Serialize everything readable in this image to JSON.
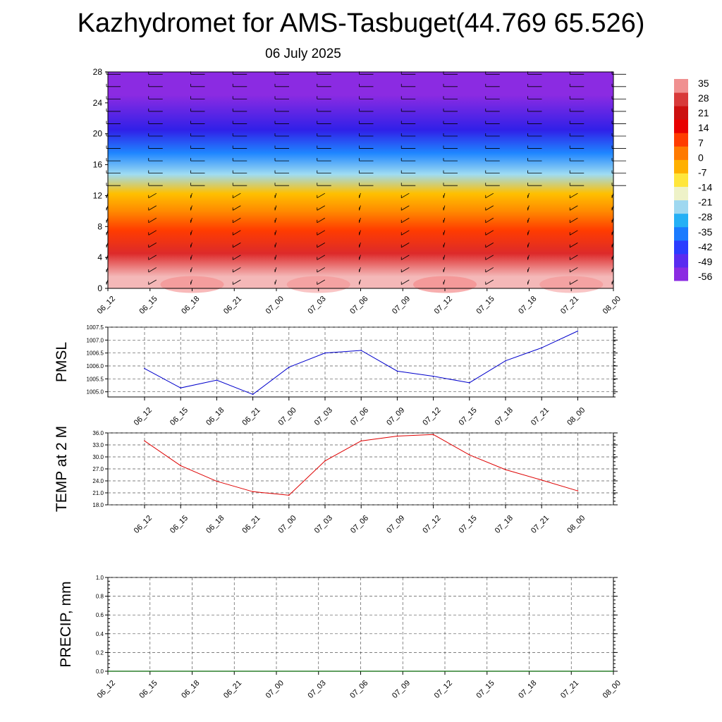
{
  "header": {
    "title": "Kazhydromet for AMS-Tasbuget(44.769 65.526)",
    "subtitle": "06 July 2025"
  },
  "colors": {
    "pmsl_line": "#0000cc",
    "temp_line": "#dd0000",
    "precip_line": "#006400",
    "grid": "#555555",
    "colorbar": [
      "#8b2be2",
      "#5a2bf0",
      "#2a3cff",
      "#1a7bff",
      "#25b0f5",
      "#9fd8f0",
      "#eef2c8",
      "#ffe63c",
      "#ffb000",
      "#ff7a00",
      "#ff3c00",
      "#e80000",
      "#cc1010",
      "#d83a3a",
      "#f09090"
    ]
  },
  "chart_data": [
    {
      "type": "heatmap",
      "title": "",
      "xlabel": "",
      "ylabel": "",
      "x_ticks": [
        "06_12",
        "06_15",
        "06_18",
        "06_21",
        "07_00",
        "07_03",
        "07_06",
        "07_09",
        "07_12",
        "07_15",
        "07_18",
        "07_21",
        "08_00"
      ],
      "y_ticks": [
        "0",
        "4",
        "8",
        "12",
        "16",
        "20",
        "24",
        "28"
      ],
      "ylim": [
        0,
        28
      ],
      "colorbar_labels": [
        "35",
        "28",
        "21",
        "14",
        "7",
        "0",
        "-7",
        "-14",
        "-21",
        "-28",
        "-35",
        "-42",
        "-49",
        "-56"
      ],
      "temperature_bands": [
        {
          "height_from": 0,
          "height_to": 3,
          "value": 33
        },
        {
          "height_from": 3,
          "height_to": 6,
          "value": 26
        },
        {
          "height_from": 6,
          "height_to": 9,
          "value": 17
        },
        {
          "height_from": 9,
          "height_to": 11,
          "value": 8
        },
        {
          "height_from": 11,
          "height_to": 13.5,
          "value": 0
        },
        {
          "height_from": 13.5,
          "height_to": 16,
          "value": -21
        },
        {
          "height_from": 16,
          "height_to": 19,
          "value": -35
        },
        {
          "height_from": 19,
          "height_to": 22,
          "value": -49
        },
        {
          "height_from": 22,
          "height_to": 28,
          "value": -56
        }
      ]
    },
    {
      "type": "line",
      "ylabel": "PMSL",
      "categories": [
        "06_12",
        "06_15",
        "06_18",
        "06_21",
        "07_00",
        "07_03",
        "07_06",
        "07_09",
        "07_12",
        "07_15",
        "07_18",
        "07_21",
        "08_00"
      ],
      "values": [
        1005.9,
        1005.15,
        1005.45,
        1004.9,
        1005.95,
        1006.5,
        1006.6,
        1005.8,
        1005.6,
        1005.35,
        1006.2,
        1006.7,
        1007.35
      ],
      "ylim": [
        1004.8,
        1007.5
      ],
      "y_ticks": [
        "1005.0",
        "1005.5",
        "1006.0",
        "1006.5",
        "1007.0",
        "1007.5"
      ]
    },
    {
      "type": "line",
      "ylabel": "TEMP at 2 M",
      "categories": [
        "06_12",
        "06_15",
        "06_18",
        "06_21",
        "07_00",
        "07_03",
        "07_06",
        "07_09",
        "07_12",
        "07_15",
        "07_18",
        "07_21",
        "08_00"
      ],
      "values": [
        34.0,
        27.8,
        23.9,
        21.3,
        20.4,
        29.0,
        34.0,
        35.2,
        35.6,
        30.5,
        26.8,
        24.2,
        21.5
      ],
      "ylim": [
        18.0,
        36.0
      ],
      "y_ticks": [
        "18.0",
        "21.0",
        "24.0",
        "27.0",
        "30.0",
        "33.0",
        "36.0"
      ]
    },
    {
      "type": "line",
      "ylabel": "PRECIP, mm",
      "categories": [
        "06_12",
        "06_15",
        "06_18",
        "06_21",
        "07_00",
        "07_03",
        "07_06",
        "07_09",
        "07_12",
        "07_15",
        "07_18",
        "07_21",
        "08_00"
      ],
      "values": [
        0,
        0,
        0,
        0,
        0,
        0,
        0,
        0,
        0,
        0,
        0,
        0,
        0
      ],
      "ylim": [
        0,
        1.0
      ],
      "y_ticks": [
        "0.0",
        "0.2",
        "0.4",
        "0.6",
        "0.8",
        "1.0"
      ]
    }
  ]
}
